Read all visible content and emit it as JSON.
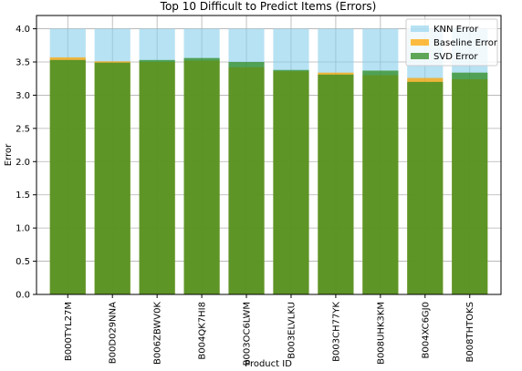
{
  "chart_data": {
    "type": "bar",
    "title": "Top 10 Difficult to Predict Items (Errors)",
    "x_label": "Product ID",
    "y_label": "Error",
    "categories": [
      "B000TYL27M",
      "B00D029NNA",
      "B006ZBWV0K",
      "B004QK7HI8",
      "B003OC6LWM",
      "B003ELVLKU",
      "B003CH77YK",
      "B008UHK3KM",
      "B004XC6GJ0",
      "B008THTOKS"
    ],
    "series": [
      {
        "name": "KNN Error",
        "color": "#87ceeb",
        "values": [
          4.0,
          4.0,
          4.0,
          4.0,
          4.0,
          4.0,
          4.0,
          4.0,
          4.0,
          4.0
        ]
      },
      {
        "name": "Baseline Error",
        "color": "#ffa500",
        "values": [
          3.57,
          3.51,
          3.5,
          3.52,
          3.42,
          3.36,
          3.34,
          3.3,
          3.26,
          3.24
        ]
      },
      {
        "name": "SVD Error",
        "color": "#2e8b20",
        "values": [
          3.53,
          3.49,
          3.53,
          3.56,
          3.5,
          3.38,
          3.31,
          3.37,
          3.2,
          3.34
        ]
      }
    ],
    "ylim": [
      0,
      4.2
    ],
    "yticks": [
      {
        "value": 0,
        "label": "0.0"
      },
      {
        "value": 0.5,
        "label": "0.5"
      },
      {
        "value": 1,
        "label": "1.0"
      },
      {
        "value": 1.5,
        "label": "1.5"
      },
      {
        "value": 2,
        "label": "2.0"
      },
      {
        "value": 2.5,
        "label": "2.5"
      },
      {
        "value": 3,
        "label": "3.0"
      },
      {
        "value": 3.5,
        "label": "3.5"
      },
      {
        "value": 4,
        "label": "4.0"
      }
    ],
    "grid": true,
    "legend": "upper right"
  }
}
